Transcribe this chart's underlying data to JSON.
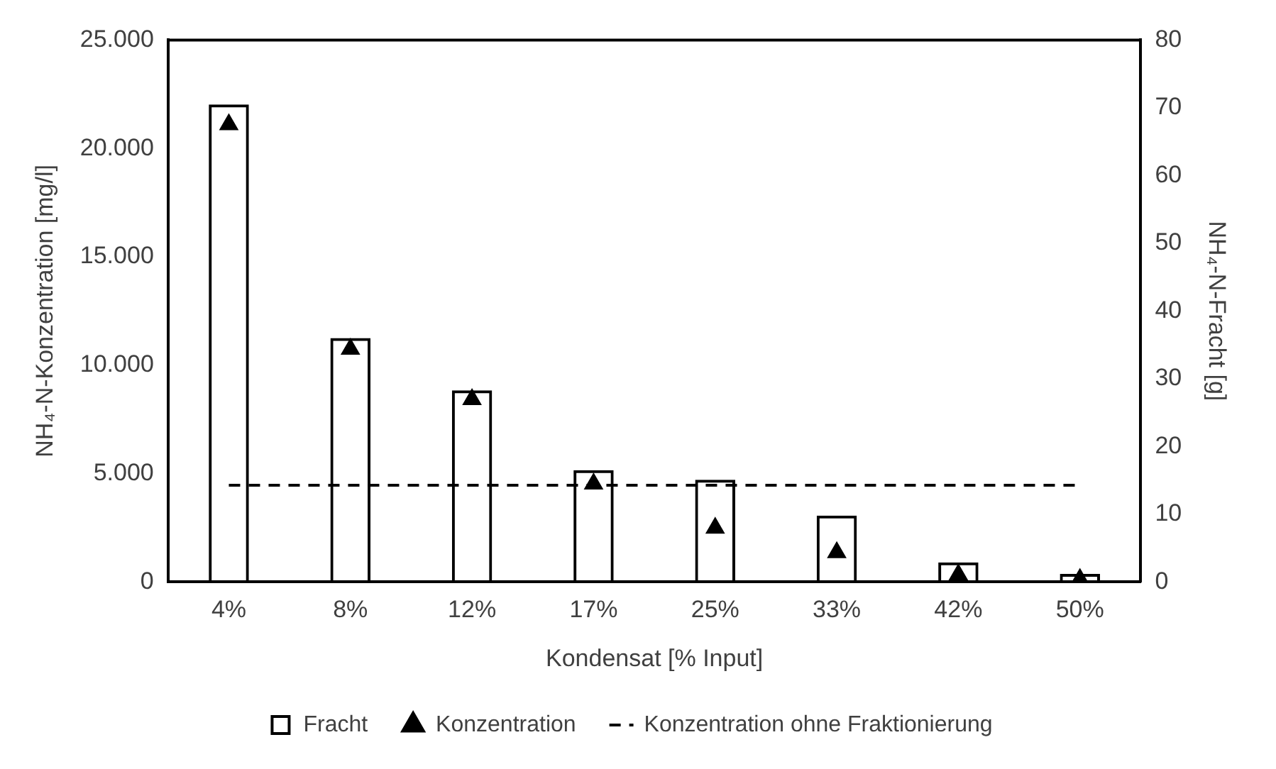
{
  "chart_data": {
    "type": "bar",
    "categories": [
      "4%",
      "8%",
      "12%",
      "17%",
      "25%",
      "33%",
      "42%",
      "50%"
    ],
    "xlabel": "Kondensat [% Input]",
    "ylabel": "NH₄-N-Konzentration [mg/l]",
    "y2label": "NH₄-N-Fracht [g]",
    "series": [
      {
        "name": "Fracht",
        "axis": "y2",
        "color": "#000000",
        "values": [
          70.5,
          36.0,
          28.3,
          16.5,
          15.1,
          9.8,
          2.9,
          1.2
        ]
      },
      {
        "name": "Konzentration",
        "type": "scatter",
        "marker": "triangle",
        "color": "#000000",
        "values": [
          21100,
          10750,
          8420,
          4530,
          2490,
          1360,
          340,
          130
        ]
      },
      {
        "name": "Konzentration ohne Fraktionierung",
        "type": "line",
        "line_style": "dashed",
        "marker": "none",
        "color": "#000000",
        "values": [
          4460,
          4460,
          4460,
          4460,
          4460,
          4460,
          4460,
          4460
        ]
      }
    ],
    "ylim": [
      0,
      25000
    ],
    "yticks": [
      {
        "value": 0,
        "label": "0"
      },
      {
        "value": 5000,
        "label": "5.000"
      },
      {
        "value": 10000,
        "label": "10.000"
      },
      {
        "value": 15000,
        "label": "15.000"
      },
      {
        "value": 20000,
        "label": "20.000"
      },
      {
        "value": 25000,
        "label": "25.000"
      }
    ],
    "y2lim": [
      0,
      80
    ],
    "y2ticks": [
      0,
      10,
      20,
      30,
      40,
      50,
      60,
      70,
      80
    ],
    "grid": false,
    "legend": "bottom"
  }
}
